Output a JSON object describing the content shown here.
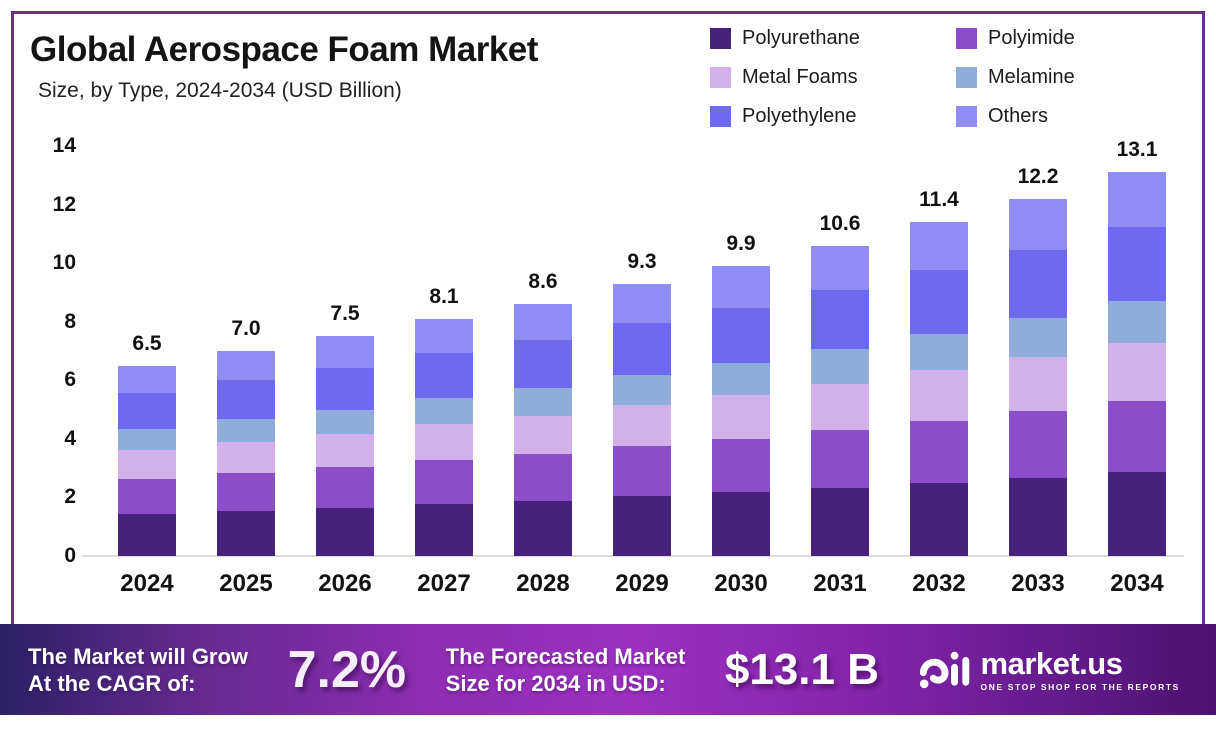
{
  "title": "Global Aerospace Foam Market",
  "subtitle": "Size, by Type, 2024-2034 (USD Billion)",
  "legend": [
    {
      "label": "Polyurethane",
      "color": "#46217E"
    },
    {
      "label": "Polyimide",
      "color": "#8B4EC8"
    },
    {
      "label": "Metal Foams",
      "color": "#D2B0EA"
    },
    {
      "label": "Melamine",
      "color": "#90ACDB"
    },
    {
      "label": "Polyethylene",
      "color": "#6E6AF0"
    },
    {
      "label": "Others",
      "color": "#908DF6"
    }
  ],
  "chart_data": {
    "type": "bar",
    "stacked": true,
    "title": "Global Aerospace Foam Market Size, by Type, 2024-2034 (USD Billion)",
    "categories": [
      "2024",
      "2025",
      "2026",
      "2027",
      "2028",
      "2029",
      "2030",
      "2031",
      "2032",
      "2033",
      "2034"
    ],
    "totals": [
      6.5,
      7.0,
      7.5,
      8.1,
      8.6,
      9.3,
      9.9,
      10.6,
      11.4,
      12.2,
      13.1
    ],
    "series": [
      {
        "name": "Polyurethane",
        "color": "#46217E",
        "values": [
          1.43,
          1.54,
          1.65,
          1.78,
          1.89,
          2.05,
          2.18,
          2.33,
          2.51,
          2.68,
          2.88
        ]
      },
      {
        "name": "Polyimide",
        "color": "#8B4EC8",
        "values": [
          1.2,
          1.3,
          1.39,
          1.5,
          1.59,
          1.72,
          1.83,
          1.96,
          2.11,
          2.26,
          2.42
        ]
      },
      {
        "name": "Metal Foams",
        "color": "#D2B0EA",
        "values": [
          0.98,
          1.06,
          1.13,
          1.22,
          1.3,
          1.4,
          1.49,
          1.6,
          1.72,
          1.84,
          1.98
        ]
      },
      {
        "name": "Melamine",
        "color": "#90ACDB",
        "values": [
          0.72,
          0.77,
          0.83,
          0.89,
          0.95,
          1.02,
          1.09,
          1.17,
          1.25,
          1.34,
          1.44
        ]
      },
      {
        "name": "Polyethylene",
        "color": "#6E6AF0",
        "values": [
          1.24,
          1.34,
          1.43,
          1.55,
          1.64,
          1.78,
          1.89,
          2.02,
          2.18,
          2.33,
          2.5
        ]
      },
      {
        "name": "Others",
        "color": "#908DF6",
        "values": [
          0.93,
          0.99,
          1.07,
          1.16,
          1.23,
          1.33,
          1.42,
          1.52,
          1.63,
          1.75,
          1.88
        ]
      }
    ],
    "stack_order_bottom_to_top": [
      "Polyurethane",
      "Polyimide",
      "Metal Foams",
      "Melamine",
      "Polyethylene",
      "Others"
    ],
    "xlabel": "",
    "ylabel": "",
    "ylim": [
      0,
      14
    ],
    "yticks": [
      0,
      2,
      4,
      6,
      8,
      10,
      12,
      14
    ],
    "grid": false,
    "legend_position": "top-right",
    "bar_value_labels": [
      "6.5",
      "7.0",
      "7.5",
      "8.1",
      "8.6",
      "9.3",
      "9.9",
      "10.6",
      "11.4",
      "12.2",
      "13.1"
    ]
  },
  "banner": {
    "cagr_label_line1": "The Market will Grow",
    "cagr_label_line2": "At the CAGR of:",
    "cagr_value": "7.2%",
    "forecast_label_line1": "The Forecasted Market",
    "forecast_label_line2": "Size for 2034 in USD:",
    "forecast_value": "$13.1 B",
    "brand_name": "market.us",
    "brand_tagline": "ONE STOP SHOP FOR THE REPORTS"
  },
  "colors": {
    "frame_border": "#6E2B93",
    "banner_gradient_left": "#2B2164",
    "banner_gradient_center": "#9D30C1",
    "banner_gradient_right": "#4C1170",
    "text_primary": "#141414",
    "axis_line": "#DCDCDC"
  }
}
